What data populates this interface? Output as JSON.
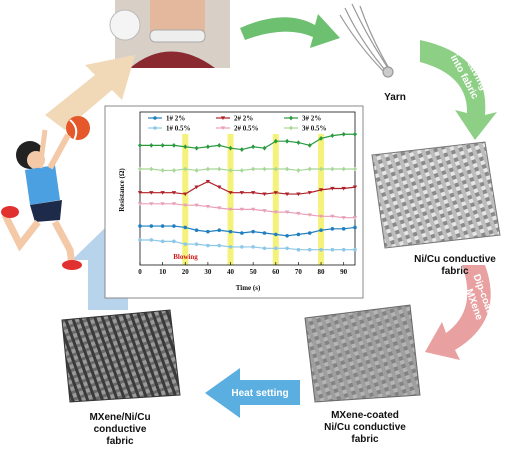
{
  "labels": {
    "yarn": "Yarn",
    "weaving": [
      "Weaving",
      "into fabric"
    ],
    "nicu": [
      "Ni/Cu conductive",
      "fabric"
    ],
    "dip": [
      "Dip-coating",
      "MXene"
    ],
    "coated": [
      "MXene-coated",
      "Ni/Cu conductive",
      "fabric"
    ],
    "heat": "Heat setting",
    "final": [
      "MXene/Ni/Cu",
      "conductive",
      "fabric"
    ]
  },
  "chart_data": {
    "type": "line",
    "x_label": "Time (s)",
    "y_label": "Resistance (Ω)",
    "annotation": "Blowing",
    "highlights": [
      20,
      40,
      60,
      80
    ],
    "highlight_color": "#f4f27a",
    "x": [
      0,
      5,
      10,
      15,
      20,
      25,
      30,
      35,
      40,
      45,
      50,
      55,
      60,
      65,
      70,
      75,
      80,
      85,
      90,
      95
    ],
    "xlim": [
      0,
      95
    ],
    "xticks": [
      0,
      10,
      20,
      30,
      40,
      50,
      60,
      70,
      80,
      90
    ],
    "ylim": [
      0,
      11
    ],
    "series": [
      {
        "name": "1# 2%",
        "color": "#1f7fc0",
        "marker": "circle",
        "values": [
          2.8,
          2.8,
          2.8,
          2.8,
          2.7,
          2.5,
          2.4,
          2.5,
          2.4,
          2.3,
          2.4,
          2.3,
          2.2,
          2.1,
          2.2,
          2.3,
          2.5,
          2.6,
          2.6,
          2.7
        ]
      },
      {
        "name": "2# 2%",
        "color": "#b02028",
        "marker": "triangle",
        "values": [
          5.2,
          5.2,
          5.2,
          5.2,
          5.1,
          5.6,
          6.0,
          5.6,
          5.2,
          5.2,
          5.2,
          5.1,
          5.2,
          5.1,
          5.1,
          5.2,
          5.4,
          5.5,
          5.5,
          5.6
        ]
      },
      {
        "name": "3# 2%",
        "color": "#2a9a40",
        "marker": "diamond",
        "values": [
          8.6,
          8.6,
          8.6,
          8.6,
          8.5,
          8.4,
          8.5,
          8.6,
          8.4,
          8.3,
          8.5,
          8.4,
          8.9,
          8.9,
          8.8,
          8.6,
          9.1,
          9.3,
          9.4,
          9.4
        ]
      },
      {
        "name": "1# 0.5%",
        "color": "#8ec8e8",
        "marker": "circle",
        "values": [
          1.8,
          1.8,
          1.7,
          1.7,
          1.5,
          1.5,
          1.4,
          1.4,
          1.3,
          1.3,
          1.3,
          1.2,
          1.2,
          1.2,
          1.1,
          1.1,
          1.1,
          1.1,
          1.1,
          1.1
        ]
      },
      {
        "name": "2# 0.5%",
        "color": "#e8a0b8",
        "marker": "triangle",
        "values": [
          4.4,
          4.4,
          4.4,
          4.4,
          4.3,
          4.3,
          4.2,
          4.1,
          4.0,
          4.0,
          4.0,
          3.9,
          3.8,
          3.8,
          3.7,
          3.6,
          3.5,
          3.5,
          3.4,
          3.4
        ]
      },
      {
        "name": "3# 0.5%",
        "color": "#a8d898",
        "marker": "diamond",
        "values": [
          6.9,
          6.9,
          6.8,
          6.8,
          6.9,
          6.8,
          6.9,
          6.9,
          6.8,
          6.8,
          6.9,
          6.9,
          6.9,
          6.9,
          6.8,
          6.9,
          6.9,
          6.9,
          6.9,
          6.9
        ]
      }
    ]
  }
}
